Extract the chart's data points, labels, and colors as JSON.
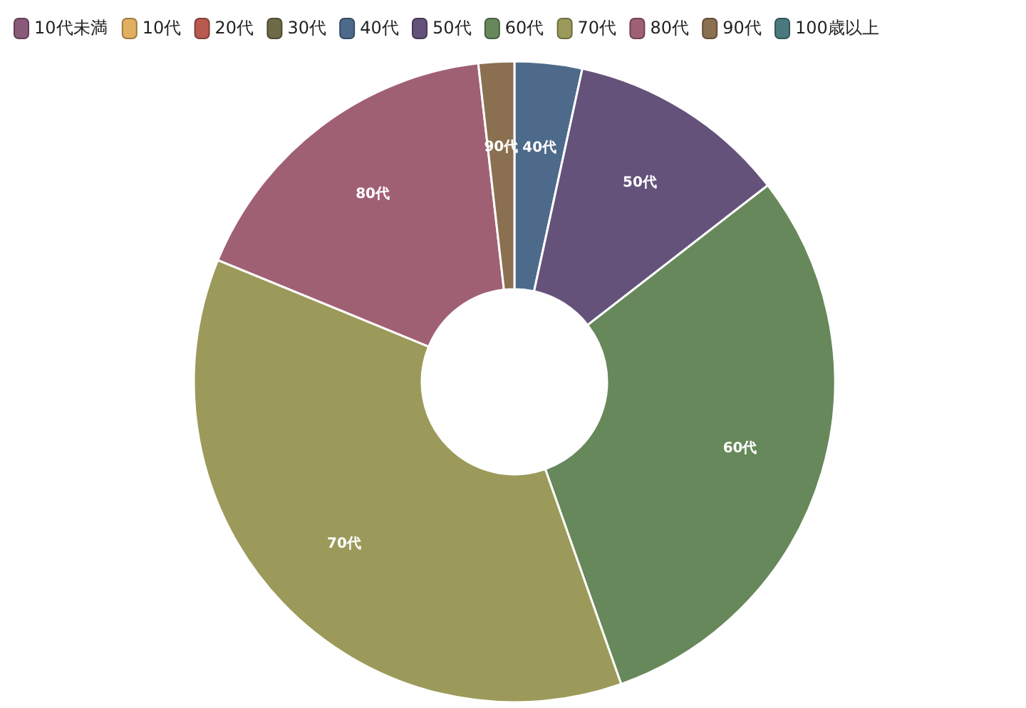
{
  "chart_data": {
    "type": "donut",
    "categories": [
      "10代未満",
      "10代",
      "20代",
      "30代",
      "40代",
      "50代",
      "60代",
      "70代",
      "80代",
      "90代",
      "100歳以上"
    ],
    "values": [
      0,
      0,
      0,
      0,
      3.4,
      11.1,
      30.1,
      36.6,
      17.0,
      1.8,
      0
    ],
    "colors": [
      "#8a5a7a",
      "#e0b060",
      "#b85a50",
      "#6e6a48",
      "#4e6a8a",
      "#64527a",
      "#66885a",
      "#9c9a5a",
      "#a06074",
      "#8a7050",
      "#4a7a7e"
    ],
    "legend": "top left"
  }
}
